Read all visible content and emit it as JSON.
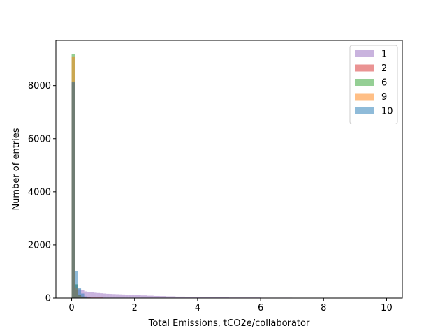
{
  "chart_data": {
    "type": "histogram",
    "title": "",
    "xlabel": "Total Emissions, tCO2e/collaborator",
    "ylabel": "Number of entries",
    "xlim": [
      -0.5,
      10.5
    ],
    "ylim": [
      0,
      9700
    ],
    "xticks": [
      0,
      2,
      4,
      6,
      8,
      10
    ],
    "yticks": [
      0,
      2000,
      4000,
      6000,
      8000
    ],
    "grid": false,
    "legend_position": "top-right",
    "bin_width": 0.1,
    "series": [
      {
        "name": "1",
        "color": "#9467bd",
        "opacity": 0.5,
        "bins": [
          [
            0.0,
            0.1,
            8100
          ],
          [
            0.1,
            0.2,
            480
          ],
          [
            0.2,
            0.3,
            330
          ],
          [
            0.3,
            0.4,
            290
          ],
          [
            0.4,
            0.5,
            250
          ],
          [
            0.5,
            0.6,
            230
          ],
          [
            0.6,
            0.7,
            215
          ],
          [
            0.7,
            0.8,
            200
          ],
          [
            0.8,
            0.9,
            190
          ],
          [
            0.9,
            1.0,
            180
          ],
          [
            1.0,
            1.1,
            170
          ],
          [
            1.1,
            1.2,
            160
          ],
          [
            1.2,
            1.3,
            155
          ],
          [
            1.3,
            1.4,
            150
          ],
          [
            1.4,
            1.5,
            145
          ],
          [
            1.5,
            1.6,
            140
          ],
          [
            1.6,
            1.7,
            135
          ],
          [
            1.7,
            1.8,
            130
          ],
          [
            1.8,
            1.9,
            125
          ],
          [
            1.9,
            2.0,
            120
          ],
          [
            2.0,
            2.2,
            110
          ],
          [
            2.2,
            2.4,
            100
          ],
          [
            2.4,
            2.6,
            90
          ],
          [
            2.6,
            2.8,
            80
          ],
          [
            2.8,
            3.0,
            75
          ],
          [
            3.0,
            3.3,
            65
          ],
          [
            3.3,
            3.6,
            55
          ],
          [
            3.6,
            4.0,
            45
          ],
          [
            4.0,
            4.5,
            38
          ],
          [
            4.5,
            5.0,
            30
          ],
          [
            5.0,
            6.0,
            22
          ],
          [
            6.0,
            7.0,
            15
          ],
          [
            7.0,
            8.0,
            10
          ],
          [
            8.0,
            9.0,
            8
          ],
          [
            9.0,
            10.0,
            6
          ]
        ]
      },
      {
        "name": "2",
        "color": "#d62728",
        "opacity": 0.5,
        "bins": [
          [
            0.0,
            0.1,
            8150
          ],
          [
            0.1,
            0.2,
            300
          ],
          [
            0.2,
            0.3,
            120
          ],
          [
            0.3,
            0.4,
            60
          ],
          [
            0.4,
            0.6,
            35
          ],
          [
            0.6,
            1.0,
            20
          ],
          [
            1.0,
            2.0,
            12
          ],
          [
            2.0,
            4.0,
            8
          ],
          [
            4.0,
            6.0,
            6
          ],
          [
            6.0,
            8.0,
            5
          ],
          [
            8.0,
            10.0,
            5
          ]
        ]
      },
      {
        "name": "6",
        "color": "#2ca02c",
        "opacity": 0.5,
        "bins": [
          [
            0.0,
            0.1,
            9200
          ],
          [
            0.1,
            0.2,
            520
          ],
          [
            0.2,
            0.3,
            110
          ],
          [
            0.3,
            0.4,
            40
          ],
          [
            0.4,
            0.5,
            15
          ],
          [
            0.5,
            0.6,
            5
          ]
        ]
      },
      {
        "name": "9",
        "color": "#ff7f0e",
        "opacity": 0.5,
        "bins": [
          [
            0.0,
            0.1,
            9100
          ],
          [
            0.1,
            0.2,
            380
          ],
          [
            0.2,
            0.3,
            90
          ],
          [
            0.3,
            0.4,
            30
          ],
          [
            0.4,
            0.5,
            10
          ]
        ]
      },
      {
        "name": "10",
        "color": "#1f77b4",
        "opacity": 0.5,
        "bins": [
          [
            0.0,
            0.1,
            8150
          ],
          [
            0.1,
            0.2,
            1000
          ],
          [
            0.2,
            0.3,
            370
          ],
          [
            0.3,
            0.4,
            170
          ],
          [
            0.4,
            0.5,
            60
          ],
          [
            0.5,
            0.6,
            20
          ],
          [
            0.6,
            0.7,
            8
          ]
        ]
      }
    ]
  }
}
